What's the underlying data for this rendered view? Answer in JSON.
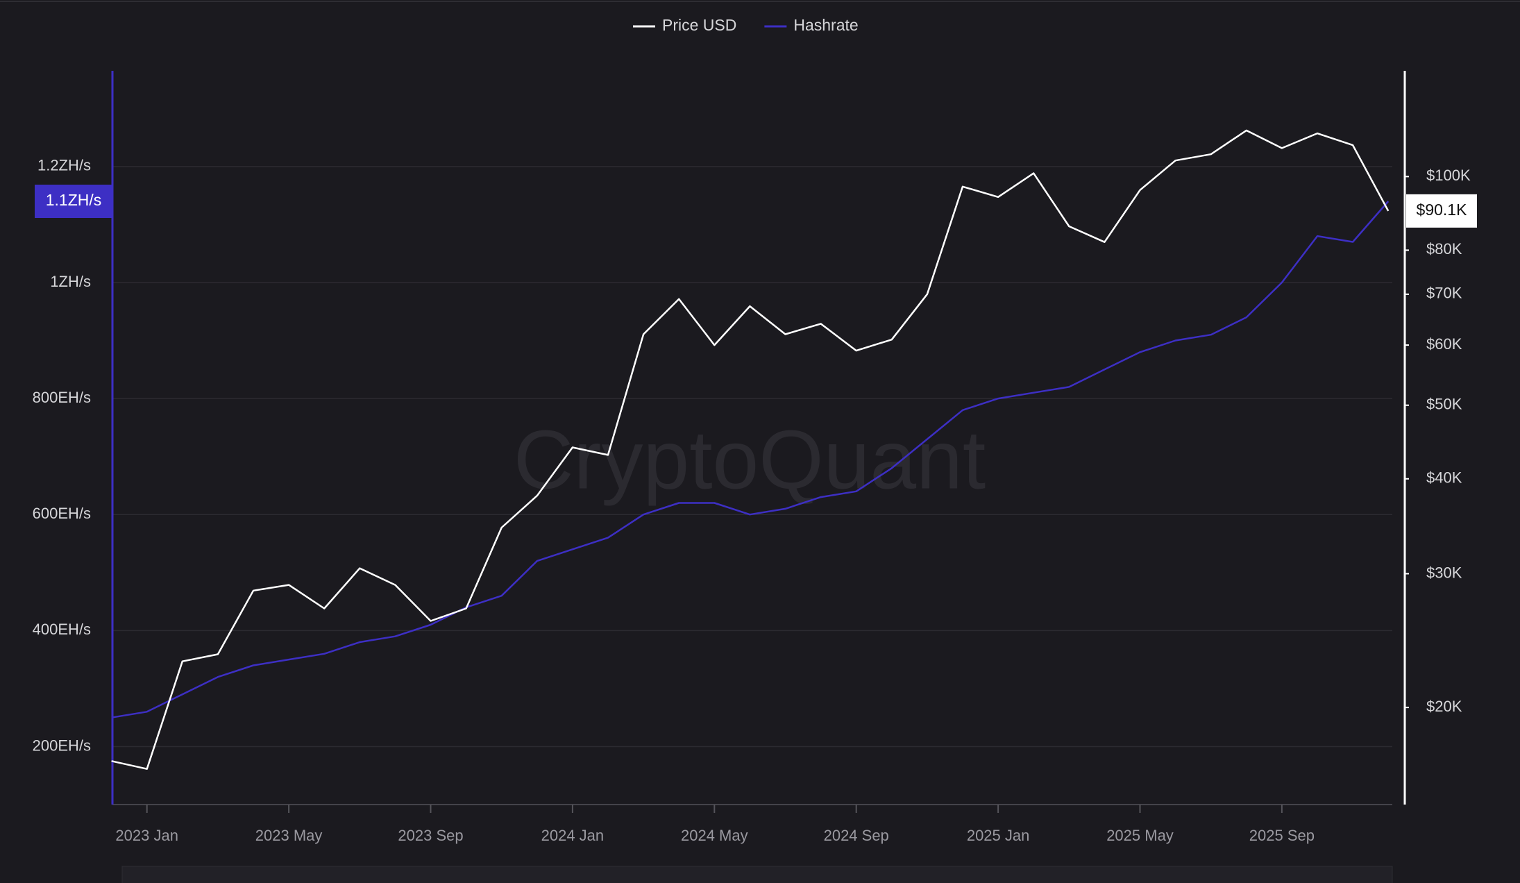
{
  "chart_data": {
    "type": "line",
    "legend_position": "top",
    "watermark": "CryptoQuant",
    "categories": [
      null,
      "2023 Jan",
      null,
      null,
      null,
      "2023 May",
      null,
      null,
      null,
      "2023 Sep",
      null,
      null,
      null,
      "2024 Jan",
      null,
      null,
      null,
      "2024 May",
      null,
      null,
      null,
      "2024 Sep",
      null,
      null,
      null,
      "2025 Jan",
      null,
      null,
      null,
      "2025 May",
      null,
      null,
      null,
      "2025 Sep",
      null,
      null,
      null
    ],
    "series": [
      {
        "name": "Price USD",
        "color": "#ffffff",
        "axis": "y2",
        "values": [
          17000,
          16600,
          23000,
          23500,
          28500,
          29000,
          27000,
          30500,
          29000,
          26000,
          27000,
          34500,
          38000,
          44000,
          43000,
          62000,
          69000,
          60000,
          67500,
          62000,
          64000,
          59000,
          61000,
          70000,
          97000,
          94000,
          101000,
          86000,
          82000,
          96000,
          105000,
          107000,
          115000,
          109000,
          114000,
          110000,
          90100
        ]
      },
      {
        "name": "Hashrate",
        "color": "#3d2fc4",
        "axis": "y",
        "values": [
          250,
          260,
          290,
          320,
          340,
          350,
          360,
          380,
          390,
          410,
          440,
          460,
          520,
          540,
          560,
          600,
          620,
          620,
          600,
          610,
          630,
          640,
          680,
          730,
          780,
          800,
          810,
          820,
          850,
          880,
          900,
          910,
          940,
          1000,
          1080,
          1070,
          1140
        ]
      }
    ],
    "ylim": [
      100,
      1365
    ],
    "yticks": [
      {
        "value": 200,
        "label": "200EH/s"
      },
      {
        "value": 400,
        "label": "400EH/s"
      },
      {
        "value": 600,
        "label": "600EH/s"
      },
      {
        "value": 800,
        "label": "800EH/s"
      },
      {
        "value": 1000,
        "label": "1ZH/s"
      },
      {
        "value": 1200,
        "label": "1.2ZH/s"
      }
    ],
    "y2lim": [
      14900,
      137800
    ],
    "y2_log": true,
    "y2ticks": [
      {
        "value": 20000,
        "label": "$20K"
      },
      {
        "value": 30000,
        "label": "$30K"
      },
      {
        "value": 40000,
        "label": "$40K"
      },
      {
        "value": 50000,
        "label": "$50K"
      },
      {
        "value": 60000,
        "label": "$60K"
      },
      {
        "value": 70000,
        "label": "$70K"
      },
      {
        "value": 80000,
        "label": "$80K"
      },
      {
        "value": 100000,
        "label": "$100K"
      }
    ],
    "current_hashrate": {
      "value": 1140,
      "label": "1.1ZH/s"
    },
    "current_price": {
      "value": 90100,
      "label": "$90.1K"
    },
    "grid": true
  }
}
